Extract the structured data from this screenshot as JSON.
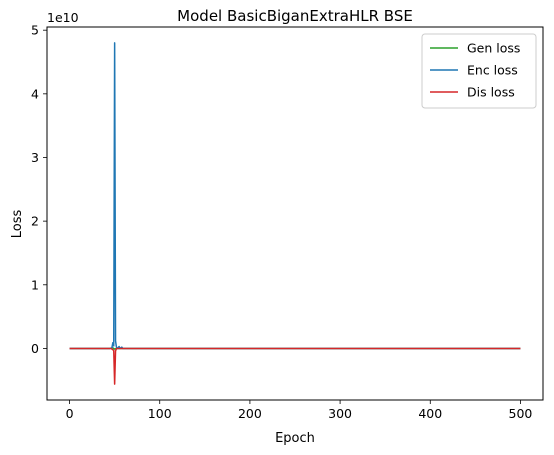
{
  "chart_data": {
    "type": "line",
    "title": "Model BasicBiganExtraHLR BSE",
    "xlabel": "Epoch",
    "ylabel": "Loss",
    "y_offset_label": "1e10",
    "y_scale_factor": 10000000000,
    "xlim": [
      -25,
      525
    ],
    "ylim": [
      -8100000000.0,
      50500000000.0
    ],
    "x_ticks": [
      0,
      100,
      200,
      300,
      400,
      500
    ],
    "y_ticks": [
      0,
      10000000000.0,
      20000000000.0,
      30000000000.0,
      40000000000.0,
      50000000000.0
    ],
    "x_tick_labels": [
      "0",
      "100",
      "200",
      "300",
      "400",
      "500"
    ],
    "y_tick_labels": [
      "0",
      "1",
      "2",
      "3",
      "4",
      "5"
    ],
    "grid": false,
    "legend_position": "top-right",
    "series": [
      {
        "name": "Gen loss",
        "color": "#2ca02c",
        "points": [
          [
            0,
            0
          ],
          [
            45,
            0
          ],
          [
            48,
            100000000.0
          ],
          [
            50,
            -100000000.0
          ],
          [
            52,
            0
          ],
          [
            500,
            0
          ]
        ]
      },
      {
        "name": "Enc loss",
        "color": "#1f77b4",
        "points": [
          [
            0,
            0
          ],
          [
            45,
            0
          ],
          [
            47,
            120000000.0
          ],
          [
            48,
            900000000.0
          ],
          [
            49,
            400000000.0
          ],
          [
            50,
            48000000000.0
          ],
          [
            51,
            1200000000.0
          ],
          [
            52,
            200000000.0
          ],
          [
            53,
            0
          ],
          [
            55,
            300000000.0
          ],
          [
            56,
            0
          ],
          [
            58,
            200000000.0
          ],
          [
            59,
            0
          ],
          [
            500,
            0
          ]
        ]
      },
      {
        "name": "Dis loss",
        "color": "#d62728",
        "points": [
          [
            0,
            0
          ],
          [
            46,
            0
          ],
          [
            48,
            -200000000.0
          ],
          [
            49,
            -300000000.0
          ],
          [
            50,
            -5600000000.0
          ],
          [
            51,
            -400000000.0
          ],
          [
            52,
            0
          ],
          [
            500,
            0
          ]
        ]
      }
    ]
  }
}
